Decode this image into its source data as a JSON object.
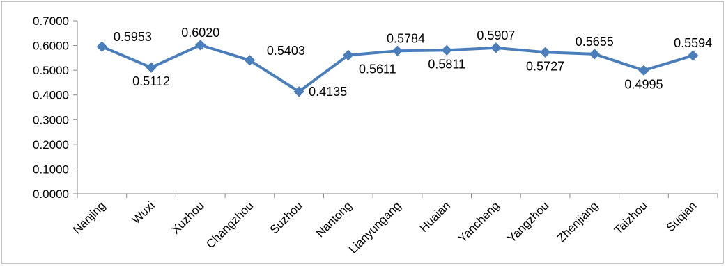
{
  "chart_data": {
    "type": "line",
    "title": "",
    "xlabel": "",
    "ylabel": "",
    "categories": [
      "Nanjing",
      "Wuxi",
      "Xuzhou",
      "Changzhou",
      "Suzhou",
      "Nantong",
      "Lianyungang",
      "Huaian",
      "Yancheng",
      "Yangzhou",
      "Zhenjiang",
      "Taizhou",
      "Suqian"
    ],
    "series": [
      {
        "values": [
          0.5953,
          0.5112,
          0.602,
          0.5403,
          0.4135,
          0.5611,
          0.5784,
          0.5811,
          0.5907,
          0.5727,
          0.5655,
          0.4995,
          0.5594
        ],
        "labels": [
          "0.5953",
          "0.5112",
          "0.6020",
          "0.5403",
          "0.4135",
          "0.5611",
          "0.5784",
          "0.5811",
          "0.5907",
          "0.5727",
          "0.5655",
          "0.4995",
          "0.5594"
        ],
        "color": "#4a7ebb",
        "marker": "diamond"
      }
    ],
    "y_ticks": [
      "0.0000",
      "0.1000",
      "0.2000",
      "0.3000",
      "0.4000",
      "0.5000",
      "0.6000",
      "0.7000"
    ],
    "ylim": [
      0,
      0.7
    ],
    "grid": false,
    "legend": "none",
    "label_positions": [
      "above",
      "below",
      "above",
      "above",
      "right",
      "below",
      "above",
      "below",
      "above",
      "below",
      "above",
      "below",
      "above"
    ]
  }
}
